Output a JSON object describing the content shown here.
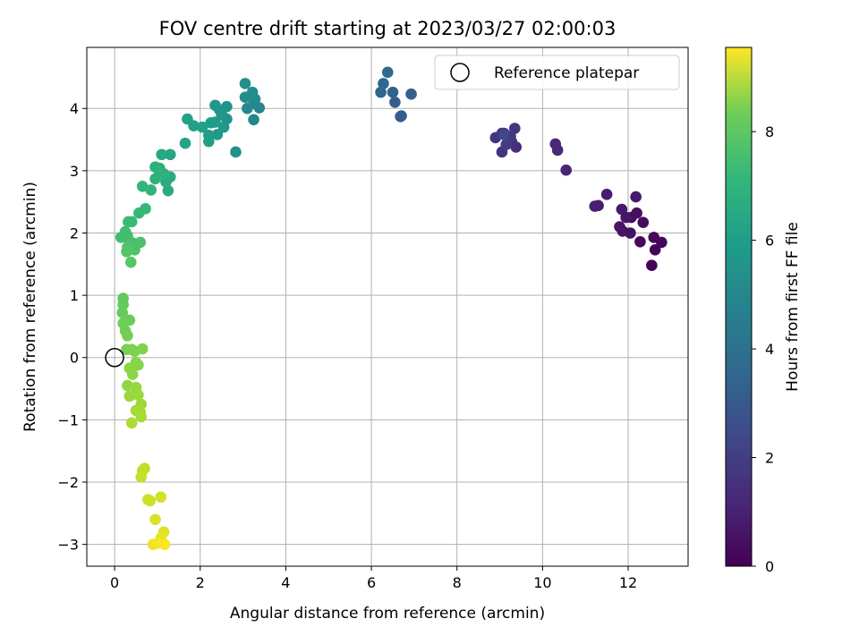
{
  "chart_data": {
    "type": "scatter",
    "title": "FOV centre drift starting at 2023/03/27 02:00:03",
    "xlabel": "Angular distance from reference (arcmin)",
    "ylabel": "Rotation from reference (arcmin)",
    "xlim": [
      -0.65,
      13.4
    ],
    "ylim": [
      -3.35,
      4.98
    ],
    "xticks": [
      0,
      2,
      4,
      6,
      8,
      10,
      12
    ],
    "yticks": [
      -3,
      -2,
      -1,
      0,
      1,
      2,
      3,
      4
    ],
    "xtick_labels": [
      "0",
      "2",
      "4",
      "6",
      "8",
      "10",
      "12"
    ],
    "ytick_labels": [
      "−3",
      "−2",
      "−1",
      "0",
      "1",
      "2",
      "3",
      "4"
    ],
    "grid": true,
    "legend": {
      "placement": "top-right",
      "entries": [
        "Reference platepar"
      ]
    },
    "reference_point": {
      "x": 0,
      "y": 0
    },
    "colorbar": {
      "label": "Hours from first FF file",
      "colormap": "viridis",
      "range": [
        0,
        9.55
      ],
      "ticks": [
        0,
        2,
        4,
        6,
        8
      ],
      "tick_labels": [
        "0",
        "2",
        "4",
        "6",
        "8"
      ]
    },
    "points": [
      {
        "x": 12.55,
        "y": 1.48,
        "t": 0.05
      },
      {
        "x": 12.63,
        "y": 1.73,
        "t": 0.1
      },
      {
        "x": 12.78,
        "y": 1.85,
        "t": 0.15
      },
      {
        "x": 12.6,
        "y": 1.93,
        "t": 0.2
      },
      {
        "x": 12.28,
        "y": 1.86,
        "t": 0.25
      },
      {
        "x": 12.35,
        "y": 2.17,
        "t": 0.3
      },
      {
        "x": 12.07,
        "y": 2.25,
        "t": 0.35
      },
      {
        "x": 12.2,
        "y": 2.32,
        "t": 0.4
      },
      {
        "x": 12.05,
        "y": 2.0,
        "t": 0.45
      },
      {
        "x": 11.87,
        "y": 2.03,
        "t": 0.5
      },
      {
        "x": 11.8,
        "y": 2.1,
        "t": 0.55
      },
      {
        "x": 11.95,
        "y": 2.25,
        "t": 0.6
      },
      {
        "x": 11.85,
        "y": 2.38,
        "t": 0.65
      },
      {
        "x": 12.18,
        "y": 2.58,
        "t": 0.7
      },
      {
        "x": 11.5,
        "y": 2.62,
        "t": 0.75
      },
      {
        "x": 11.3,
        "y": 2.44,
        "t": 0.8
      },
      {
        "x": 11.22,
        "y": 2.43,
        "t": 0.85
      },
      {
        "x": 10.55,
        "y": 3.01,
        "t": 1.0
      },
      {
        "x": 10.35,
        "y": 3.33,
        "t": 1.05
      },
      {
        "x": 10.3,
        "y": 3.43,
        "t": 1.1
      },
      {
        "x": 9.38,
        "y": 3.38,
        "t": 1.3
      },
      {
        "x": 9.28,
        "y": 3.46,
        "t": 1.35
      },
      {
        "x": 9.05,
        "y": 3.3,
        "t": 1.4
      },
      {
        "x": 8.9,
        "y": 3.53,
        "t": 1.45
      },
      {
        "x": 9.1,
        "y": 3.6,
        "t": 1.5
      },
      {
        "x": 9.35,
        "y": 3.68,
        "t": 1.55
      },
      {
        "x": 9.25,
        "y": 3.55,
        "t": 1.6
      },
      {
        "x": 9.05,
        "y": 3.6,
        "t": 1.65
      },
      {
        "x": 9.15,
        "y": 3.42,
        "t": 1.7
      },
      {
        "x": 9.1,
        "y": 3.58,
        "t": 2.05
      },
      {
        "x": 6.68,
        "y": 3.87,
        "t": 2.7
      },
      {
        "x": 6.7,
        "y": 3.88,
        "t": 2.75
      },
      {
        "x": 6.55,
        "y": 4.1,
        "t": 2.85
      },
      {
        "x": 6.93,
        "y": 4.23,
        "t": 2.9
      },
      {
        "x": 6.5,
        "y": 4.26,
        "t": 3.0
      },
      {
        "x": 6.22,
        "y": 4.26,
        "t": 3.1
      },
      {
        "x": 6.28,
        "y": 4.4,
        "t": 3.15
      },
      {
        "x": 6.38,
        "y": 4.58,
        "t": 3.25
      },
      {
        "x": 3.25,
        "y": 3.82,
        "t": 4.4
      },
      {
        "x": 3.38,
        "y": 4.01,
        "t": 4.45
      },
      {
        "x": 3.1,
        "y": 4.0,
        "t": 4.5
      },
      {
        "x": 3.25,
        "y": 4.08,
        "t": 4.55
      },
      {
        "x": 3.28,
        "y": 4.15,
        "t": 4.6
      },
      {
        "x": 3.05,
        "y": 4.18,
        "t": 4.65
      },
      {
        "x": 3.22,
        "y": 4.26,
        "t": 4.7
      },
      {
        "x": 3.05,
        "y": 4.4,
        "t": 4.75
      },
      {
        "x": 2.83,
        "y": 3.3,
        "t": 4.8
      },
      {
        "x": 2.62,
        "y": 3.83,
        "t": 4.85
      },
      {
        "x": 2.62,
        "y": 4.03,
        "t": 4.9
      },
      {
        "x": 2.45,
        "y": 3.98,
        "t": 4.95
      },
      {
        "x": 2.35,
        "y": 4.05,
        "t": 5.0
      },
      {
        "x": 2.5,
        "y": 3.9,
        "t": 5.05
      },
      {
        "x": 2.55,
        "y": 3.7,
        "t": 5.1
      },
      {
        "x": 2.4,
        "y": 3.58,
        "t": 5.15
      },
      {
        "x": 2.35,
        "y": 3.78,
        "t": 5.2
      },
      {
        "x": 2.25,
        "y": 3.77,
        "t": 5.25
      },
      {
        "x": 2.2,
        "y": 3.57,
        "t": 5.3
      },
      {
        "x": 2.2,
        "y": 3.47,
        "t": 5.35
      },
      {
        "x": 2.05,
        "y": 3.7,
        "t": 5.4
      },
      {
        "x": 1.85,
        "y": 3.72,
        "t": 5.45
      },
      {
        "x": 1.7,
        "y": 3.83,
        "t": 5.5
      },
      {
        "x": 1.65,
        "y": 3.44,
        "t": 5.55
      },
      {
        "x": 1.3,
        "y": 3.26,
        "t": 5.65
      },
      {
        "x": 1.1,
        "y": 3.26,
        "t": 5.7
      },
      {
        "x": 1.3,
        "y": 2.9,
        "t": 5.8
      },
      {
        "x": 1.2,
        "y": 2.82,
        "t": 5.85
      },
      {
        "x": 1.25,
        "y": 2.68,
        "t": 5.9
      },
      {
        "x": 1.05,
        "y": 2.95,
        "t": 5.95
      },
      {
        "x": 1.05,
        "y": 3.04,
        "t": 6.0
      },
      {
        "x": 0.95,
        "y": 3.06,
        "t": 6.05
      },
      {
        "x": 0.95,
        "y": 2.87,
        "t": 6.1
      },
      {
        "x": 1.15,
        "y": 2.95,
        "t": 6.15
      },
      {
        "x": 0.85,
        "y": 2.69,
        "t": 6.2
      },
      {
        "x": 0.65,
        "y": 2.75,
        "t": 6.25
      },
      {
        "x": 0.72,
        "y": 2.39,
        "t": 6.35
      },
      {
        "x": 0.57,
        "y": 2.32,
        "t": 6.4
      },
      {
        "x": 0.4,
        "y": 2.18,
        "t": 6.45
      },
      {
        "x": 0.32,
        "y": 2.18,
        "t": 6.5
      },
      {
        "x": 0.25,
        "y": 2.02,
        "t": 6.55
      },
      {
        "x": 0.15,
        "y": 1.93,
        "t": 6.6
      },
      {
        "x": 0.3,
        "y": 1.96,
        "t": 6.65
      },
      {
        "x": 0.35,
        "y": 1.87,
        "t": 6.7
      },
      {
        "x": 0.42,
        "y": 1.84,
        "t": 6.75
      },
      {
        "x": 0.6,
        "y": 1.85,
        "t": 6.8
      },
      {
        "x": 0.47,
        "y": 1.73,
        "t": 6.85
      },
      {
        "x": 0.3,
        "y": 1.77,
        "t": 6.9
      },
      {
        "x": 0.28,
        "y": 1.7,
        "t": 6.95
      },
      {
        "x": 0.38,
        "y": 1.53,
        "t": 7.0
      },
      {
        "x": 0.2,
        "y": 0.95,
        "t": 7.2
      },
      {
        "x": 0.2,
        "y": 0.85,
        "t": 7.25
      },
      {
        "x": 0.18,
        "y": 0.72,
        "t": 7.3
      },
      {
        "x": 0.35,
        "y": 0.6,
        "t": 7.35
      },
      {
        "x": 0.2,
        "y": 0.55,
        "t": 7.4
      },
      {
        "x": 0.25,
        "y": 0.43,
        "t": 7.45
      },
      {
        "x": 0.3,
        "y": 0.35,
        "t": 7.5
      },
      {
        "x": 0.28,
        "y": 0.13,
        "t": 7.55
      },
      {
        "x": 0.4,
        "y": 0.13,
        "t": 7.6
      },
      {
        "x": 0.47,
        "y": 0.1,
        "t": 7.65
      },
      {
        "x": 0.65,
        "y": 0.14,
        "t": 7.7
      },
      {
        "x": 0.5,
        "y": -0.08,
        "t": 7.75
      },
      {
        "x": 0.55,
        "y": -0.12,
        "t": 7.8
      },
      {
        "x": 0.35,
        "y": -0.17,
        "t": 7.85
      },
      {
        "x": 0.42,
        "y": -0.27,
        "t": 7.9
      },
      {
        "x": 0.3,
        "y": -0.45,
        "t": 7.95
      },
      {
        "x": 0.5,
        "y": -0.48,
        "t": 8.0
      },
      {
        "x": 0.35,
        "y": -0.62,
        "t": 8.05
      },
      {
        "x": 0.55,
        "y": -0.6,
        "t": 8.1
      },
      {
        "x": 0.62,
        "y": -0.75,
        "t": 8.15
      },
      {
        "x": 0.5,
        "y": -0.85,
        "t": 8.2
      },
      {
        "x": 0.6,
        "y": -0.88,
        "t": 8.25
      },
      {
        "x": 0.62,
        "y": -0.95,
        "t": 8.3
      },
      {
        "x": 0.4,
        "y": -1.05,
        "t": 8.35
      },
      {
        "x": 0.7,
        "y": -1.78,
        "t": 8.6
      },
      {
        "x": 0.65,
        "y": -1.82,
        "t": 8.65
      },
      {
        "x": 0.62,
        "y": -1.92,
        "t": 8.7
      },
      {
        "x": 0.78,
        "y": -2.28,
        "t": 8.8
      },
      {
        "x": 0.83,
        "y": -2.3,
        "t": 8.85
      },
      {
        "x": 1.08,
        "y": -2.24,
        "t": 8.9
      },
      {
        "x": 0.95,
        "y": -2.6,
        "t": 9.0
      },
      {
        "x": 1.15,
        "y": -2.8,
        "t": 9.1
      },
      {
        "x": 1.08,
        "y": -2.9,
        "t": 9.2
      },
      {
        "x": 0.9,
        "y": -3.0,
        "t": 9.3
      },
      {
        "x": 1.0,
        "y": -2.98,
        "t": 9.4
      },
      {
        "x": 1.17,
        "y": -3.0,
        "t": 9.5
      }
    ]
  }
}
